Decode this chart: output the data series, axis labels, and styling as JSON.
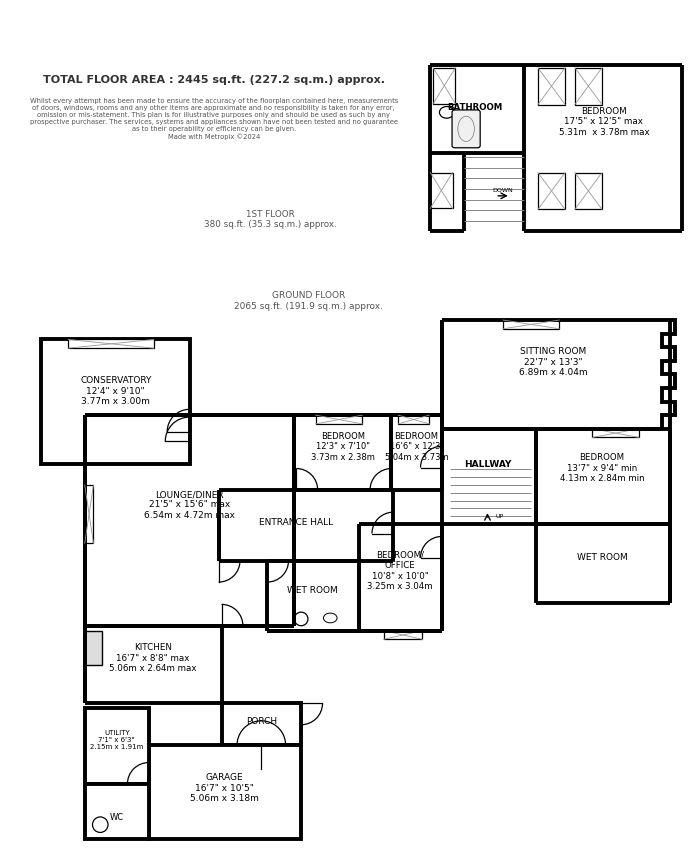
{
  "title": "TOTAL FLOOR AREA : 2445 sq.ft. (227.2 sq.m.) approx.",
  "disclaimer": "Whilst every attempt has been made to ensure the accuracy of the floorplan contained here, measurements\nof doors, windows, rooms and any other items are approximate and no responsibility is taken for any error,\nomission or mis-statement. This plan is for illustrative purposes only and should be used as such by any\nprospective purchaser. The services, systems and appliances shown have not been tested and no guarantee\nas to their operability or efficiency can be given.\nMade with Metropix ©2024",
  "ground_floor_label": "GROUND FLOOR\n2065 sq.ft. (191.9 sq.m.) approx.",
  "first_floor_label": "1ST FLOOR\n380 sq.ft. (35.3 sq.m.) approx.",
  "wall_lw": 2.8,
  "thin_lw": 0.8,
  "rooms": {
    "conservatory": "CONSERVATORY\n12'4\" x 9'10\"\n3.77m x 3.00m",
    "lounge_diner": "LOUNGE/DINER\n21'5\" x 15'6\" max\n6.54m x 4.72m max",
    "bedroom_gf1": "BEDROOM\n12'3\" x 7'10\"\n3.73m x 2.38m",
    "bedroom_gf2": "BEDROOM\n16'6\" x 12'3\"\n5.04m x 3.73m",
    "sitting_room": "SITTING ROOM\n22'7\" x 13'3\"\n6.89m x 4.04m",
    "hallway": "HALLWAY",
    "bedroom_gf3": "BEDROOM\n13'7\" x 9'4\" min\n4.13m x 2.84m min",
    "entrance_hall": "ENTRANCE HALL",
    "wet_room_center": "WET ROOM",
    "bedroom_office": "BEDROOM/\nOFFICE\n10'8\" x 10'0\"\n3.25m x 3.04m",
    "wet_room_right": "WET ROOM",
    "kitchen": "KITCHEN\n16'7\" x 8'8\" max\n5.06m x 2.64m max",
    "porch": "PORCH",
    "utility": "UTILITY\n7'1\" x 6'3\"\n2.15m x 1.91m",
    "garage": "GARAGE\n16'7\" x 10'5\"\n5.06m x 3.18m",
    "wc": "WC",
    "bathroom_ff": "BATHROOM",
    "bedroom_ff": "BEDROOM\n17'5\" x 12'5\" max\n5.31m  x 3.78m max"
  }
}
